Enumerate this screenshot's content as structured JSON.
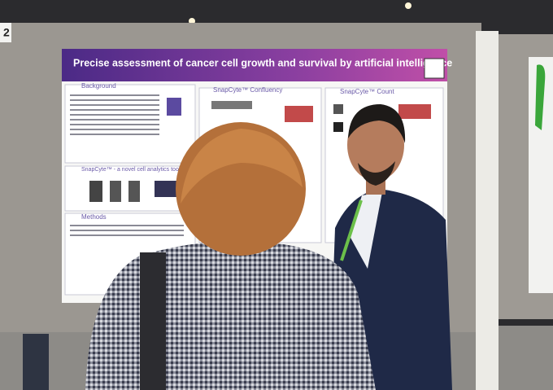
{
  "board_number": "2",
  "poster": {
    "title": "Precise assessment of cancer cell growth and survival by artificial intelligence",
    "sections": [
      "Background",
      "SnapCyte™ Confluency",
      "SnapCyte™ Count",
      "SnapCyte™ - a novel cell analytics tool",
      "Methods"
    ]
  }
}
